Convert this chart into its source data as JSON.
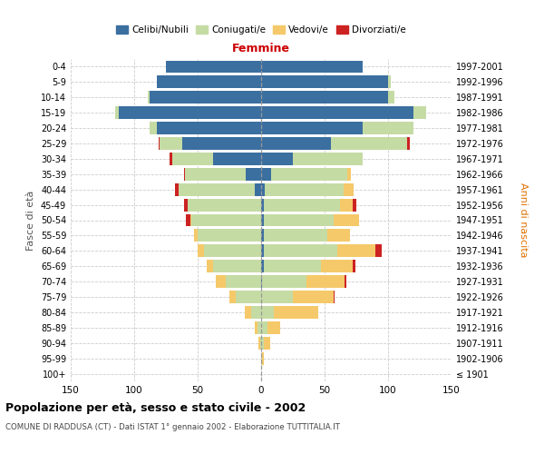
{
  "age_groups": [
    "100+",
    "95-99",
    "90-94",
    "85-89",
    "80-84",
    "75-79",
    "70-74",
    "65-69",
    "60-64",
    "55-59",
    "50-54",
    "45-49",
    "40-44",
    "35-39",
    "30-34",
    "25-29",
    "20-24",
    "15-19",
    "10-14",
    "5-9",
    "0-4"
  ],
  "birth_years": [
    "≤ 1901",
    "1902-1906",
    "1907-1911",
    "1912-1916",
    "1917-1921",
    "1922-1926",
    "1927-1931",
    "1932-1936",
    "1937-1941",
    "1942-1946",
    "1947-1951",
    "1952-1956",
    "1957-1961",
    "1962-1966",
    "1967-1971",
    "1972-1976",
    "1977-1981",
    "1982-1986",
    "1987-1991",
    "1992-1996",
    "1997-2001"
  ],
  "male": {
    "celibe": [
      0,
      0,
      0,
      0,
      0,
      0,
      0,
      0,
      0,
      0,
      0,
      0,
      5,
      12,
      38,
      62,
      82,
      112,
      88,
      82,
      75
    ],
    "coniugato": [
      0,
      0,
      1,
      3,
      8,
      20,
      28,
      38,
      45,
      50,
      55,
      58,
      60,
      48,
      32,
      18,
      6,
      3,
      1,
      0,
      0
    ],
    "vedovo": [
      0,
      0,
      1,
      2,
      5,
      5,
      8,
      5,
      5,
      3,
      1,
      0,
      0,
      0,
      0,
      0,
      0,
      0,
      0,
      0,
      0
    ],
    "divorziato": [
      0,
      0,
      0,
      0,
      0,
      0,
      0,
      0,
      0,
      0,
      3,
      3,
      3,
      1,
      2,
      1,
      0,
      0,
      0,
      0,
      0
    ]
  },
  "female": {
    "nubile": [
      0,
      0,
      0,
      0,
      0,
      0,
      1,
      2,
      2,
      2,
      2,
      2,
      3,
      8,
      25,
      55,
      80,
      120,
      100,
      100,
      80
    ],
    "coniugata": [
      0,
      1,
      2,
      5,
      10,
      25,
      35,
      45,
      58,
      50,
      55,
      60,
      62,
      60,
      55,
      60,
      40,
      10,
      5,
      2,
      0
    ],
    "vedova": [
      0,
      1,
      5,
      10,
      35,
      32,
      30,
      25,
      30,
      18,
      20,
      10,
      8,
      3,
      0,
      0,
      0,
      0,
      0,
      0,
      0
    ],
    "divorziata": [
      0,
      0,
      0,
      0,
      0,
      1,
      1,
      2,
      5,
      0,
      0,
      3,
      0,
      0,
      0,
      2,
      0,
      0,
      0,
      0,
      0
    ]
  },
  "colors": {
    "celibe": "#3b6fa0",
    "coniugato": "#c5dba4",
    "vedovo": "#f5c96a",
    "divorziato": "#cc2222"
  },
  "title": "Popolazione per età, sesso e stato civile - 2002",
  "subtitle": "COMUNE DI RADDUSA (CT) - Dati ISTAT 1° gennaio 2002 - Elaborazione TUTTITALIA.IT",
  "xlabel_right": "Femmine",
  "ylabel_left": "Fasce di età",
  "ylabel_right": "Anni di nascita",
  "xlim": 150,
  "legend_labels": [
    "Celibi/Nubili",
    "Coniugati/e",
    "Vedovi/e",
    "Divorziati/e"
  ]
}
